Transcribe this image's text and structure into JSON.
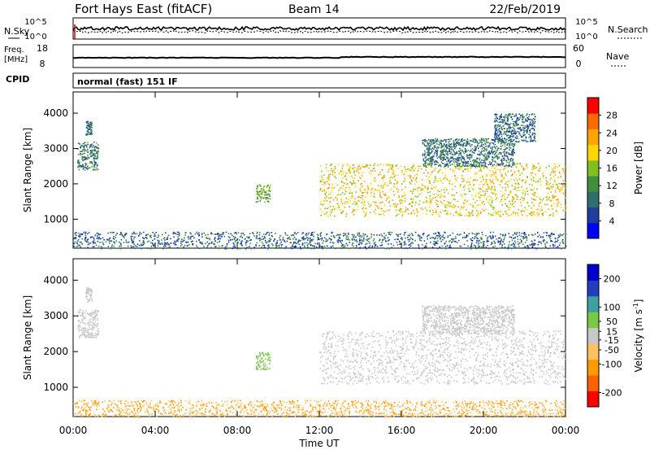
{
  "header": {
    "station": "Fort Hays East (fitACF)",
    "beam": "Beam 14",
    "date": "22/Feb/2019"
  },
  "strip_labels": {
    "nsky": "N.Sky",
    "nsearch": "N.Search",
    "freq_line1": "Freq.",
    "freq_line2": "[MHz]",
    "nave": "Nave",
    "cpid": "CPID",
    "mode": "normal (fast) 151 IF"
  },
  "strip_ticks": {
    "noise_left": [
      "10^5",
      "10^0"
    ],
    "noise_right": [
      "10^5",
      "10^0"
    ],
    "freq_left": [
      "18",
      "8"
    ],
    "nave_right": [
      "60",
      "0"
    ]
  },
  "chart_data": [
    {
      "type": "heatmap",
      "panel": "power",
      "xlabel": "",
      "ylabel": "Slant Range [km]",
      "xlim": [
        0,
        24
      ],
      "ylim": [
        180,
        4600
      ],
      "yticks": [
        1000,
        2000,
        3000,
        4000
      ],
      "colorbar": {
        "label": "Power [dB]",
        "range": [
          0,
          32
        ],
        "ticks": [
          4,
          8,
          12,
          16,
          20,
          24,
          28
        ],
        "colors": [
          "#0000ff",
          "#1f3fa0",
          "#2f6f6f",
          "#3f8f3f",
          "#7fbf1f",
          "#ffd700",
          "#ffa500",
          "#ff6a00",
          "#ff0000"
        ]
      },
      "features": [
        {
          "t0": 0.2,
          "t1": 1.2,
          "r0": 2400,
          "r1": 3200,
          "level": 10
        },
        {
          "t0": 0.6,
          "t1": 0.9,
          "r0": 3400,
          "r1": 3800,
          "level": 9
        },
        {
          "t0": 8.9,
          "t1": 9.6,
          "r0": 1500,
          "r1": 2000,
          "level": 14
        },
        {
          "t0": 12.0,
          "t1": 24.0,
          "r0": 1100,
          "r1": 2600,
          "level": 20
        },
        {
          "t0": 17.0,
          "t1": 21.5,
          "r0": 2500,
          "r1": 3300,
          "level": 9
        },
        {
          "t0": 20.5,
          "t1": 22.5,
          "r0": 3200,
          "r1": 4000,
          "level": 8
        },
        {
          "t0": 0.0,
          "t1": 24.0,
          "r0": 180,
          "r1": 650,
          "level": 8
        }
      ]
    },
    {
      "type": "heatmap",
      "panel": "velocity",
      "xlabel": "Time UT",
      "ylabel": "Slant Range [km]",
      "xlim": [
        0,
        24
      ],
      "ylim": [
        180,
        4600
      ],
      "yticks": [
        1000,
        2000,
        3000,
        4000
      ],
      "xticks": [
        "00:00",
        "04:00",
        "08:00",
        "12:00",
        "16:00",
        "20:00",
        "00:00"
      ],
      "colorbar": {
        "label": "Velocity [m s^-1]",
        "range": [
          -250,
          250
        ],
        "ticks": [
          200,
          100,
          50,
          15,
          -15,
          -50,
          -100,
          -200
        ],
        "colors": [
          "#ff0000",
          "#ff6000",
          "#ff9a00",
          "#ffc060",
          "#c8c8c8",
          "#7ac943",
          "#3fa0a0",
          "#2040c0",
          "#0000cc"
        ]
      },
      "features": [
        {
          "t0": 0.2,
          "t1": 1.2,
          "r0": 2400,
          "r1": 3200,
          "vel": 0
        },
        {
          "t0": 0.6,
          "t1": 0.9,
          "r0": 3400,
          "r1": 3800,
          "vel": 0
        },
        {
          "t0": 8.9,
          "t1": 9.6,
          "r0": 1500,
          "r1": 2000,
          "vel": 40
        },
        {
          "t0": 12.0,
          "t1": 24.0,
          "r0": 1100,
          "r1": 2600,
          "vel": 0
        },
        {
          "t0": 17.0,
          "t1": 21.5,
          "r0": 2500,
          "r1": 3300,
          "vel": 0
        },
        {
          "t0": 0.0,
          "t1": 24.0,
          "r0": 180,
          "r1": 650,
          "vel": -80
        }
      ]
    }
  ]
}
